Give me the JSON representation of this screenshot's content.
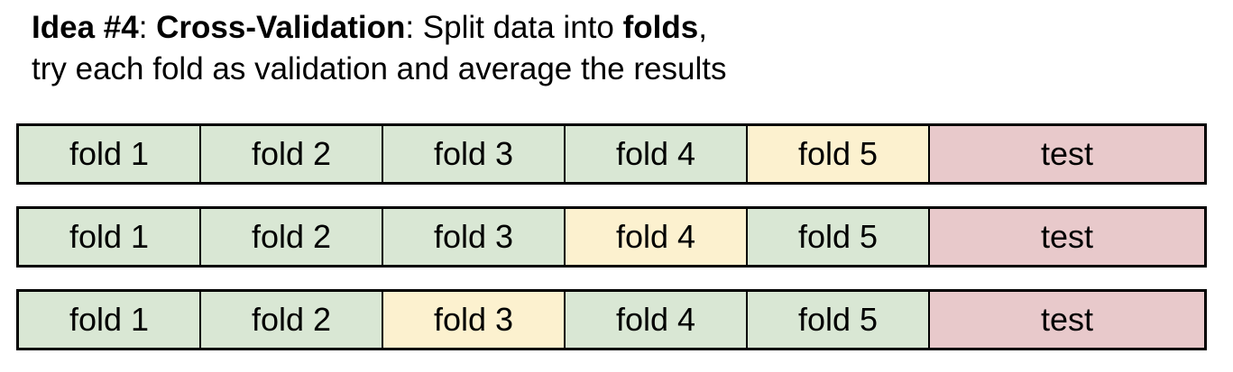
{
  "heading": {
    "idea_label": "Idea #4",
    "sep1": ": ",
    "method": "Cross-Validation",
    "sep2": ": Split data into ",
    "folds_word": "folds",
    "comma": ",",
    "line2": "try each fold as validation and average the results"
  },
  "colors": {
    "train": "#d9e7d4",
    "validation": "#fcf1cf",
    "test": "#e8c9cb"
  },
  "rows": [
    {
      "cells": [
        {
          "label": "fold 1",
          "role": "train"
        },
        {
          "label": "fold 2",
          "role": "train"
        },
        {
          "label": "fold 3",
          "role": "train"
        },
        {
          "label": "fold 4",
          "role": "train"
        },
        {
          "label": "fold 5",
          "role": "validation"
        },
        {
          "label": "test",
          "role": "test"
        }
      ]
    },
    {
      "cells": [
        {
          "label": "fold 1",
          "role": "train"
        },
        {
          "label": "fold 2",
          "role": "train"
        },
        {
          "label": "fold 3",
          "role": "train"
        },
        {
          "label": "fold 4",
          "role": "validation"
        },
        {
          "label": "fold 5",
          "role": "train"
        },
        {
          "label": "test",
          "role": "test"
        }
      ]
    },
    {
      "cells": [
        {
          "label": "fold 1",
          "role": "train"
        },
        {
          "label": "fold 2",
          "role": "train"
        },
        {
          "label": "fold 3",
          "role": "validation"
        },
        {
          "label": "fold 4",
          "role": "train"
        },
        {
          "label": "fold 5",
          "role": "train"
        },
        {
          "label": "test",
          "role": "test"
        }
      ]
    }
  ]
}
